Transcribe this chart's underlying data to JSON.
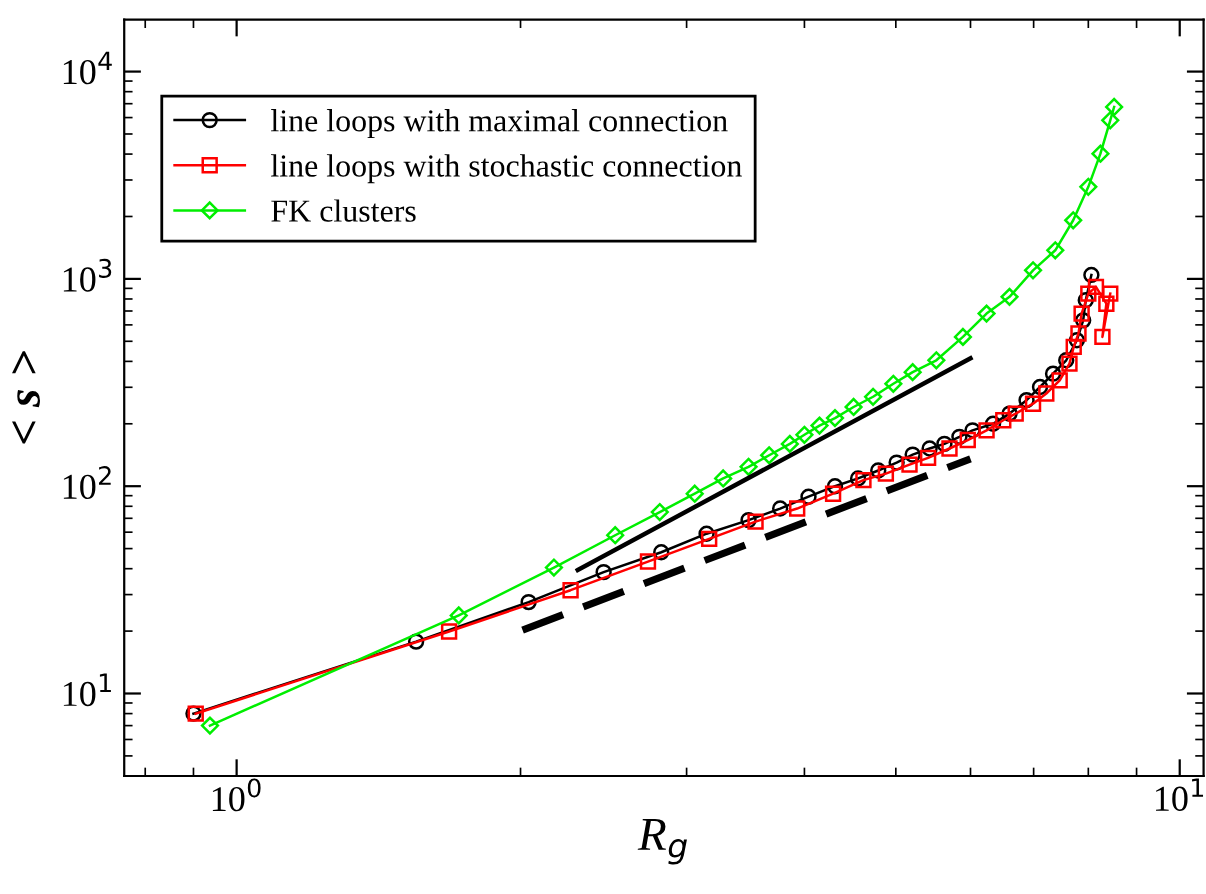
{
  "chart_data": {
    "type": "line",
    "xlabel": "R$_{g}$",
    "ylabel": "< s >",
    "log": "xy",
    "xlim": [
      0.76,
      10.6
    ],
    "ylim": [
      4,
      17800
    ],
    "xticks": [
      {
        "value": 1,
        "label": "10$^{0}$"
      },
      {
        "value": 10,
        "label": "10$^{1}$"
      }
    ],
    "yticks": [
      {
        "value": 10,
        "label": "10$^{1}$"
      },
      {
        "value": 100,
        "label": "10$^{2}$"
      },
      {
        "value": 1000,
        "label": "10$^{3}$"
      },
      {
        "value": 10000,
        "label": "10$^{4}$"
      }
    ],
    "grid": false,
    "legend": "top left",
    "series": [
      {
        "name": "line loops with maximal connection",
        "color": "#000000",
        "marker": "circle",
        "x": [
          0.9,
          1.55,
          2.04,
          2.45,
          2.82,
          3.15,
          3.49,
          3.77,
          4.04,
          4.31,
          4.56,
          4.79,
          5.01,
          5.21,
          5.43,
          5.63,
          5.84,
          6.03,
          6.34,
          6.6,
          6.88,
          7.11,
          7.34,
          7.58,
          7.78,
          7.9,
          7.95,
          8.06
        ],
        "values": [
          8.0,
          17.8,
          27.6,
          38.5,
          48,
          59,
          68.6,
          78,
          89,
          100,
          109,
          119,
          130,
          142,
          152,
          160,
          173,
          186,
          200,
          224,
          260,
          301,
          349,
          405,
          506,
          631,
          789,
          1045
        ]
      },
      {
        "name": "line loops with stochastic connection",
        "color": "#ff0000",
        "marker": "square",
        "x": [
          0.905,
          1.68,
          2.26,
          2.73,
          3.17,
          3.55,
          3.93,
          4.29,
          4.62,
          4.88,
          5.17,
          5.41,
          5.7,
          5.96,
          6.24,
          6.5,
          6.7,
          6.99,
          7.22,
          7.46,
          7.64,
          7.72,
          7.81,
          7.87,
          8.0,
          8.15,
          8.36,
          8.28,
          8.44
        ],
        "values": [
          8.0,
          19.9,
          31.5,
          43.3,
          55.7,
          67.5,
          78,
          92,
          107,
          115,
          127,
          137,
          152,
          167,
          186,
          208,
          224,
          250,
          280,
          324,
          390,
          470,
          545,
          680,
          849,
          915,
          759,
          525,
          849
        ]
      },
      {
        "name": "FK clusters",
        "color": "#00ee00",
        "marker": "diamond",
        "x": [
          0.937,
          1.72,
          2.17,
          2.52,
          2.81,
          3.06,
          3.28,
          3.49,
          3.67,
          3.86,
          4.0,
          4.15,
          4.31,
          4.51,
          4.73,
          4.97,
          5.21,
          5.52,
          5.89,
          6.24,
          6.6,
          6.99,
          7.38,
          7.71,
          8.0,
          8.24,
          8.44,
          8.52
        ],
        "values": [
          7.0,
          23.8,
          40.5,
          58,
          75,
          92,
          109,
          124,
          141,
          160,
          177,
          196,
          213,
          241,
          270,
          312,
          355,
          405,
          525,
          680,
          819,
          1100,
          1374,
          1918,
          2780,
          4018,
          5820,
          6750
        ]
      },
      {
        "color": "#000000",
        "marker": "none",
        "line_style": "solid",
        "x": [
          2.3,
          6.0
        ],
        "values": [
          39.4,
          414
        ]
      },
      {
        "color": "#000000",
        "marker": "none",
        "line_style": "dashed",
        "x": [
          2.01,
          6.0
        ],
        "values": [
          20.2,
          135.6
        ]
      }
    ]
  }
}
